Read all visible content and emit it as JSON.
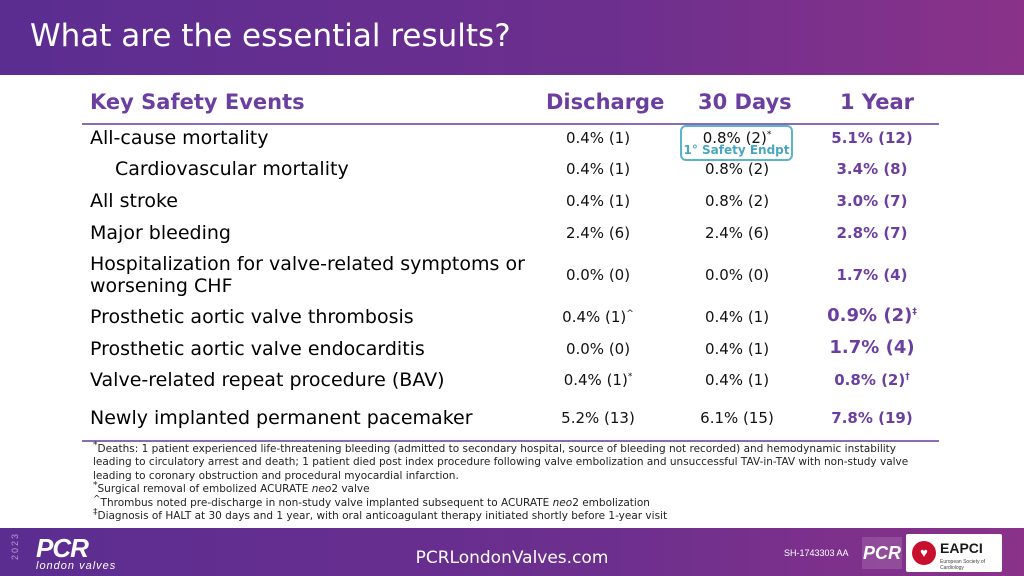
{
  "header": {
    "title": "What are the essential results?"
  },
  "columns": {
    "events": "Key Safety Events",
    "discharge": "Discharge",
    "d30": "30 Days",
    "y1": "1 Year"
  },
  "endpoint_label": "1° Safety Endpt",
  "rows": [
    {
      "label": "All-cause mortality",
      "discharge": "0.4% (1)",
      "d30": "0.8% (2)",
      "d30_sup": "*",
      "y1": "5.1% (12)"
    },
    {
      "label": "Cardiovascular mortality",
      "discharge": "0.4% (1)",
      "d30": "0.8% (2)",
      "y1": "3.4% (8)"
    },
    {
      "label": "All stroke",
      "discharge": "0.4% (1)",
      "d30": "0.8% (2)",
      "y1": "3.0% (7)"
    },
    {
      "label": "Major bleeding",
      "discharge": "2.4% (6)",
      "d30": "2.4% (6)",
      "y1": "2.8% (7)"
    },
    {
      "label": "Hospitalization for valve-related symptoms or worsening CHF",
      "discharge": "0.0% (0)",
      "d30": "0.0% (0)",
      "y1": "1.7% (4)"
    },
    {
      "label": "Prosthetic aortic valve thrombosis",
      "discharge": "0.4% (1)",
      "discharge_sup": "^",
      "d30": "0.4% (1)",
      "y1": "0.9% (2)",
      "y1_sup": "‡"
    },
    {
      "label": "Prosthetic aortic valve endocarditis",
      "discharge": "0.0% (0)",
      "d30": "0.4% (1)",
      "y1": "1.7% (4)"
    },
    {
      "label": "Valve-related repeat procedure (BAV)",
      "discharge": "0.4% (1)",
      "discharge_sup": "*",
      "d30": "0.4% (1)",
      "y1": "0.8% (2)",
      "y1_sup": "†"
    },
    {
      "label": "Newly implanted permanent pacemaker",
      "discharge": "5.2% (13)",
      "d30": "6.1% (15)",
      "y1": "7.8% (19)"
    }
  ],
  "footnotes": {
    "f1_mark": "*",
    "f1": "Deaths: 1 patient experienced life-threatening bleeding (admitted to secondary hospital, source of bleeding not recorded) and hemodynamic instability leading to circulatory arrest and death; 1 patient died post index procedure following valve embolization and unsuccessful TAV-in-TAV with non-study valve leading to coronary obstruction and procedural myocardial infarction.",
    "f2_mark": "*",
    "f2_pre": "Surgical removal of embolized ACURATE ",
    "f2_em": "neo",
    "f2_post": "2 valve",
    "f3_mark": "^",
    "f3_pre": "Thrombus noted pre-discharge in non-study valve implanted subsequent to ACURATE ",
    "f3_em": "neo",
    "f3_post": "2 embolization",
    "f4_mark": "‡",
    "f4": "Diagnosis of HALT at 30 days and 1 year, with oral anticoagulant therapy initiated shortly before 1-year visit"
  },
  "footer": {
    "year": "2023",
    "logo": "PCR",
    "logo_sub": "london valves",
    "site": "PCRLondonValves.com",
    "code": "SH-1743303 AA",
    "badge": "PCR",
    "eapci": "EAPCI",
    "eapci_small": "European Society of Cardiology"
  }
}
